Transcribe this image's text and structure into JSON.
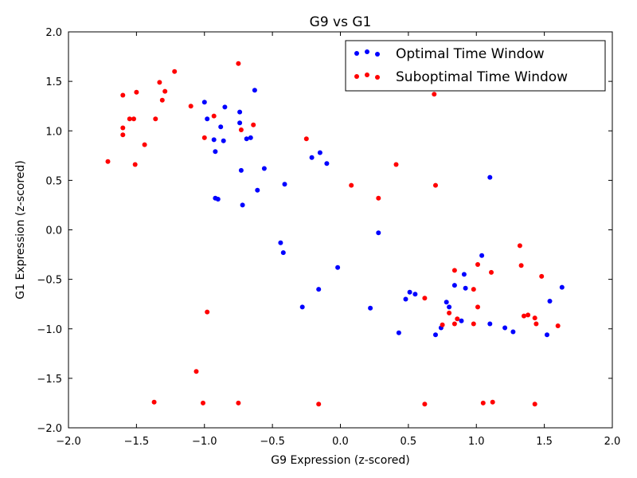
{
  "chart_data": {
    "type": "scatter",
    "title": "G9 vs G1",
    "xlabel": "G9 Expression (z-scored)",
    "ylabel": "G1 Expression (z-scored)",
    "xlim": [
      -2.0,
      2.0
    ],
    "ylim": [
      -2.0,
      2.0
    ],
    "xticks": [
      -2.0,
      -1.5,
      -1.0,
      -0.5,
      0.0,
      0.5,
      1.0,
      1.5,
      2.0
    ],
    "yticks": [
      -2.0,
      -1.5,
      -1.0,
      -0.5,
      0.0,
      0.5,
      1.0,
      1.5,
      2.0
    ],
    "xtick_labels": [
      "−2.0",
      "−1.5",
      "−1.0",
      "−0.5",
      "0.0",
      "0.5",
      "1.0",
      "1.5",
      "2.0"
    ],
    "ytick_labels": [
      "−2.0",
      "−1.5",
      "−1.0",
      "−0.5",
      "0.0",
      "0.5",
      "1.0",
      "1.5",
      "2.0"
    ],
    "grid": false,
    "legend_position": "top-right",
    "series": [
      {
        "name": "Optimal Time Window",
        "color": "#0000ff",
        "points": [
          [
            -1.0,
            1.29
          ],
          [
            -0.98,
            1.12
          ],
          [
            -0.93,
            0.91
          ],
          [
            -0.92,
            0.79
          ],
          [
            -0.88,
            1.04
          ],
          [
            -0.86,
            0.9
          ],
          [
            -0.85,
            1.24
          ],
          [
            -0.74,
            1.19
          ],
          [
            -0.74,
            1.08
          ],
          [
            -0.69,
            0.92
          ],
          [
            -0.66,
            0.93
          ],
          [
            -0.63,
            1.41
          ],
          [
            -0.73,
            0.6
          ],
          [
            -0.61,
            0.4
          ],
          [
            -0.56,
            0.62
          ],
          [
            -0.92,
            0.32
          ],
          [
            -0.9,
            0.31
          ],
          [
            -0.72,
            0.25
          ],
          [
            -0.41,
            0.46
          ],
          [
            -0.44,
            -0.13
          ],
          [
            -0.42,
            -0.23
          ],
          [
            -0.28,
            -0.78
          ],
          [
            -0.16,
            -0.6
          ],
          [
            -0.21,
            0.73
          ],
          [
            -0.15,
            0.78
          ],
          [
            -0.1,
            0.67
          ],
          [
            -0.02,
            -0.38
          ],
          [
            0.22,
            -0.79
          ],
          [
            0.28,
            -0.03
          ],
          [
            0.43,
            -1.04
          ],
          [
            0.48,
            -0.7
          ],
          [
            0.51,
            -0.63
          ],
          [
            0.55,
            -0.65
          ],
          [
            0.7,
            -1.06
          ],
          [
            0.74,
            -0.99
          ],
          [
            0.78,
            -0.73
          ],
          [
            0.8,
            -0.78
          ],
          [
            0.84,
            -0.56
          ],
          [
            0.89,
            -0.92
          ],
          [
            0.91,
            -0.45
          ],
          [
            0.92,
            -0.59
          ],
          [
            1.04,
            -0.26
          ],
          [
            1.1,
            -0.95
          ],
          [
            1.1,
            0.53
          ],
          [
            1.21,
            -0.99
          ],
          [
            1.27,
            -1.03
          ],
          [
            1.52,
            -1.06
          ],
          [
            1.54,
            -0.72
          ],
          [
            1.63,
            -0.58
          ]
        ]
      },
      {
        "name": "Suboptimal Time Window",
        "color": "#ff0000",
        "points": [
          [
            -1.71,
            0.69
          ],
          [
            -1.6,
            1.36
          ],
          [
            -1.6,
            1.03
          ],
          [
            -1.6,
            0.96
          ],
          [
            -1.55,
            1.12
          ],
          [
            -1.52,
            1.12
          ],
          [
            -1.5,
            1.39
          ],
          [
            -1.51,
            0.66
          ],
          [
            -1.44,
            0.86
          ],
          [
            -1.36,
            1.12
          ],
          [
            -1.33,
            1.49
          ],
          [
            -1.31,
            1.31
          ],
          [
            -1.29,
            1.4
          ],
          [
            -1.22,
            1.6
          ],
          [
            -1.1,
            1.25
          ],
          [
            -0.93,
            1.15
          ],
          [
            -1.0,
            0.93
          ],
          [
            -0.75,
            1.68
          ],
          [
            -0.73,
            1.01
          ],
          [
            -0.64,
            1.06
          ],
          [
            -0.25,
            0.92
          ],
          [
            -0.98,
            -0.83
          ],
          [
            -1.06,
            -1.43
          ],
          [
            -1.37,
            -1.74
          ],
          [
            -1.01,
            -1.75
          ],
          [
            -0.75,
            -1.75
          ],
          [
            -0.16,
            -1.76
          ],
          [
            0.08,
            0.45
          ],
          [
            0.28,
            0.32
          ],
          [
            0.41,
            0.66
          ],
          [
            0.62,
            -1.76
          ],
          [
            0.62,
            -0.69
          ],
          [
            0.69,
            1.37
          ],
          [
            0.7,
            0.45
          ],
          [
            0.75,
            -0.96
          ],
          [
            0.8,
            -0.84
          ],
          [
            0.84,
            -0.95
          ],
          [
            0.84,
            -0.41
          ],
          [
            0.86,
            -0.9
          ],
          [
            0.98,
            -0.6
          ],
          [
            0.98,
            -0.95
          ],
          [
            1.01,
            -0.78
          ],
          [
            1.01,
            -0.35
          ],
          [
            1.05,
            -1.75
          ],
          [
            1.11,
            -0.43
          ],
          [
            1.12,
            -1.74
          ],
          [
            1.32,
            -0.16
          ],
          [
            1.33,
            -0.36
          ],
          [
            1.35,
            -0.87
          ],
          [
            1.38,
            -0.86
          ],
          [
            1.43,
            -0.89
          ],
          [
            1.44,
            -0.95
          ],
          [
            1.43,
            -1.76
          ],
          [
            1.48,
            -0.47
          ],
          [
            1.6,
            -0.97
          ]
        ]
      }
    ]
  }
}
